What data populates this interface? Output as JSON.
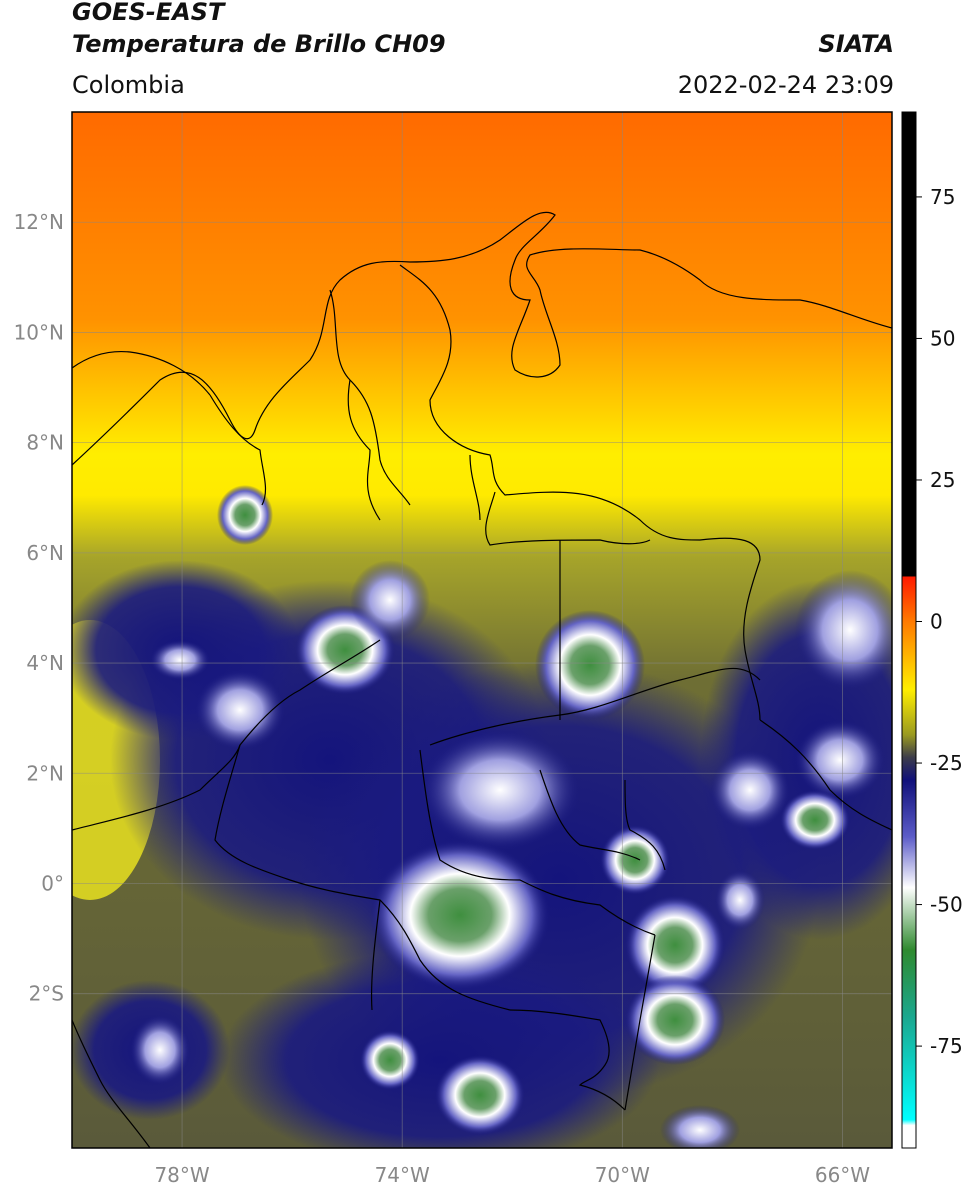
{
  "header": {
    "satellite": "GOES-EAST",
    "product": "Temperatura de Brillo CH09",
    "brand": "SIATA",
    "region": "Colombia",
    "timestamp": "2022-02-24 23:09"
  },
  "map": {
    "lat_ticks": [
      {
        "value": 12,
        "label": "12°N"
      },
      {
        "value": 10,
        "label": "10°N"
      },
      {
        "value": 8,
        "label": "8°N"
      },
      {
        "value": 6,
        "label": "6°N"
      },
      {
        "value": 4,
        "label": "4°N"
      },
      {
        "value": 2,
        "label": "2°N"
      },
      {
        "value": 0,
        "label": "0°"
      },
      {
        "value": -2,
        "label": "2°S"
      }
    ],
    "lon_ticks": [
      {
        "value": -78,
        "label": "78°W"
      },
      {
        "value": -74,
        "label": "74°W"
      },
      {
        "value": -70,
        "label": "70°W"
      },
      {
        "value": -66,
        "label": "66°W"
      }
    ],
    "gridlines": true
  },
  "colorbar": {
    "ticks": [
      {
        "value": 75,
        "label": "75"
      },
      {
        "value": 50,
        "label": "50"
      },
      {
        "value": 25,
        "label": "25"
      },
      {
        "value": 0,
        "label": "0"
      },
      {
        "value": -25,
        "label": "-25"
      },
      {
        "value": -50,
        "label": "-50"
      },
      {
        "value": -75,
        "label": "-75"
      }
    ],
    "stops": [
      {
        "value": 90,
        "color": "#000000"
      },
      {
        "value": 8,
        "color": "#000000"
      },
      {
        "value": 7.9,
        "color": "#ff1a00"
      },
      {
        "value": 0,
        "color": "#ff7a00"
      },
      {
        "value": -12,
        "color": "#ffee00"
      },
      {
        "value": -20,
        "color": "#9a9a20"
      },
      {
        "value": -24,
        "color": "#3c3c4a"
      },
      {
        "value": -28,
        "color": "#10107a"
      },
      {
        "value": -38,
        "color": "#5c5cc8"
      },
      {
        "value": -47,
        "color": "#ffffff"
      },
      {
        "value": -58,
        "color": "#2f8a2f"
      },
      {
        "value": -70,
        "color": "#1aa890"
      },
      {
        "value": -88,
        "color": "#00ffff"
      },
      {
        "value": -89,
        "color": "#ffffff"
      },
      {
        "value": -93,
        "color": "#ffffff"
      }
    ]
  }
}
